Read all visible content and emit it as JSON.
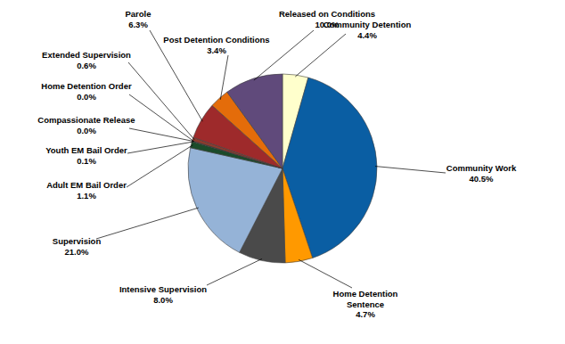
{
  "chart_data": {
    "type": "pie",
    "categories": [
      "Community Detention",
      "Community Work",
      "Home Detention Sentence",
      "Intensive Supervision",
      "Supervision",
      "Adult EM Bail Order",
      "Youth EM Bail Order",
      "Compassionate Release",
      "Home Detention Order",
      "Extended Supervision",
      "Parole",
      "Post Detention Conditions",
      "Released on Conditions"
    ],
    "values": [
      4.4,
      40.5,
      4.7,
      8.0,
      21.0,
      1.1,
      0.1,
      0.0,
      0.0,
      0.6,
      6.3,
      3.4,
      10.0
    ],
    "value_labels": [
      "4.4%",
      "40.5%",
      "4.7%",
      "8.0%",
      "21.0%",
      "1.1%",
      "0.1%",
      "0.0%",
      "0.0%",
      "0.6%",
      "6.3%",
      "3.4%",
      "10.0%"
    ],
    "colors": [
      "#FFFFCC",
      "#0A5EA3",
      "#FF9900",
      "#4A4A4A",
      "#95B3D7",
      "#1B4B2A",
      "#7F7F7F",
      "#C0504D",
      "#9BBB59",
      "#8C3B2E",
      "#9E2A2B",
      "#E46C0A",
      "#604A7B"
    ],
    "data_labels": true
  }
}
